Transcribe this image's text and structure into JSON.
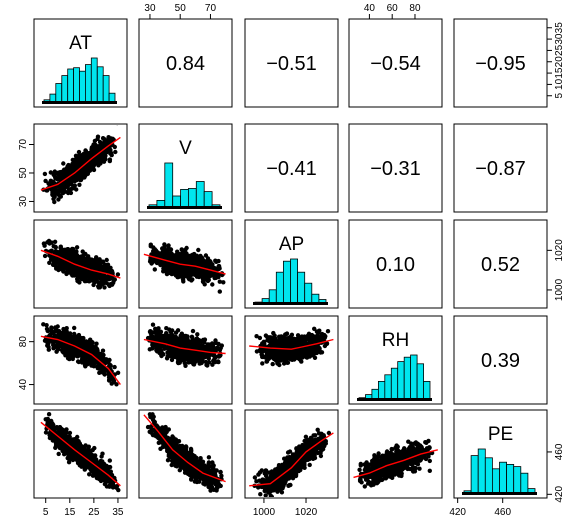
{
  "chart_data": {
    "type": "scatter-matrix",
    "variables": [
      "AT",
      "V",
      "AP",
      "RH",
      "PE"
    ],
    "axis_ticks": {
      "AT": [
        5,
        10,
        15,
        20,
        25,
        30,
        35
      ],
      "V": [
        30,
        50,
        70
      ],
      "AP": [
        1000,
        1020
      ],
      "RH": [
        40,
        60,
        80
      ],
      "PE": [
        420,
        460
      ]
    },
    "axis_ticks_bottom": {
      "AT": [
        5,
        15,
        25,
        35
      ],
      "AP": [
        1000,
        1020
      ],
      "PE": [
        420,
        460
      ]
    },
    "axis_ticks_top": {
      "V": [
        30,
        50,
        70
      ],
      "RH": [
        40,
        60,
        80
      ]
    },
    "axis_ticks_left": {
      "V": [
        30,
        50,
        70
      ],
      "RH": [
        40,
        80
      ]
    },
    "axis_ticks_right": {
      "AT": [
        5,
        10,
        15,
        20,
        25,
        30,
        35
      ],
      "AP": [
        1000,
        1020
      ],
      "PE": [
        420,
        460
      ]
    },
    "ranges": {
      "AT": [
        1.8,
        37.1
      ],
      "V": [
        25.4,
        81.6
      ],
      "AP": [
        992.9,
        1033.3
      ],
      "RH": [
        25.6,
        100.2
      ],
      "PE": [
        420.3,
        495.8
      ]
    },
    "correlations": [
      {
        "row": 0,
        "col": 1,
        "label": "0.84"
      },
      {
        "row": 0,
        "col": 2,
        "label": "−0.51"
      },
      {
        "row": 0,
        "col": 3,
        "label": "−0.54"
      },
      {
        "row": 0,
        "col": 4,
        "label": "−0.95"
      },
      {
        "row": 1,
        "col": 2,
        "label": "−0.41"
      },
      {
        "row": 1,
        "col": 3,
        "label": "−0.31"
      },
      {
        "row": 1,
        "col": 4,
        "label": "−0.87"
      },
      {
        "row": 2,
        "col": 3,
        "label": "0.10"
      },
      {
        "row": 2,
        "col": 4,
        "label": "0.52"
      },
      {
        "row": 3,
        "col": 4,
        "label": "0.39"
      }
    ],
    "histograms": {
      "AT": [
        0.05,
        0.18,
        0.42,
        0.6,
        0.75,
        0.78,
        0.7,
        0.85,
        1.0,
        0.8,
        0.6,
        0.2
      ],
      "V": [
        0.05,
        0.15,
        1.0,
        0.25,
        0.4,
        0.42,
        0.58,
        0.35,
        0.05
      ],
      "AP": [
        0.02,
        0.1,
        0.3,
        0.7,
        0.95,
        1.0,
        0.7,
        0.45,
        0.2,
        0.08
      ],
      "RH": [
        0.03,
        0.1,
        0.22,
        0.4,
        0.55,
        0.7,
        0.85,
        0.95,
        1.0,
        0.8,
        0.4
      ],
      "PE": [
        0.05,
        0.85,
        1.0,
        0.8,
        0.55,
        0.7,
        0.65,
        0.6,
        0.45,
        0.1
      ]
    },
    "histogram_color": "#00e5ee",
    "smoother_color": "#ff0000",
    "point_color": "#000000",
    "smoothers": {
      "V_vs_AT": {
        "x": [
          3,
          10,
          17,
          24,
          31,
          36
        ],
        "y": [
          38,
          42,
          50,
          60,
          69,
          75
        ]
      },
      "AP_vs_AT": {
        "x": [
          3,
          10,
          17,
          24,
          31,
          36
        ],
        "y": [
          1020,
          1017,
          1013,
          1010,
          1008,
          1006
        ]
      },
      "RH_vs_AT": {
        "x": [
          3,
          10,
          17,
          24,
          31,
          36
        ],
        "y": [
          85,
          82,
          76,
          68,
          55,
          40
        ]
      },
      "PE_vs_AT": {
        "x": [
          3,
          10,
          17,
          24,
          31,
          36
        ],
        "y": [
          488,
          475,
          462,
          450,
          438,
          428
        ]
      },
      "AP_vs_V": {
        "x": [
          26,
          40,
          50,
          60,
          70,
          80
        ],
        "y": [
          1018,
          1015,
          1013,
          1012,
          1010,
          1008
        ]
      },
      "RH_vs_V": {
        "x": [
          26,
          40,
          50,
          60,
          70,
          80
        ],
        "y": [
          82,
          78,
          74,
          72,
          70,
          69
        ]
      },
      "PE_vs_V": {
        "x": [
          26,
          35,
          45,
          55,
          65,
          80
        ],
        "y": [
          495,
          480,
          462,
          450,
          440,
          432
        ]
      },
      "RH_vs_AP": {
        "x": [
          993,
          1003,
          1013,
          1018,
          1025,
          1033
        ],
        "y": [
          76,
          74,
          73,
          75,
          78,
          82
        ]
      },
      "PE_vs_AP": {
        "x": [
          993,
          1003,
          1013,
          1020,
          1027,
          1033
        ],
        "y": [
          428,
          430,
          445,
          460,
          470,
          478
        ]
      },
      "PE_vs_RH": {
        "x": [
          26,
          40,
          55,
          70,
          85,
          100
        ],
        "y": [
          436,
          440,
          447,
          452,
          458,
          462
        ]
      }
    }
  }
}
